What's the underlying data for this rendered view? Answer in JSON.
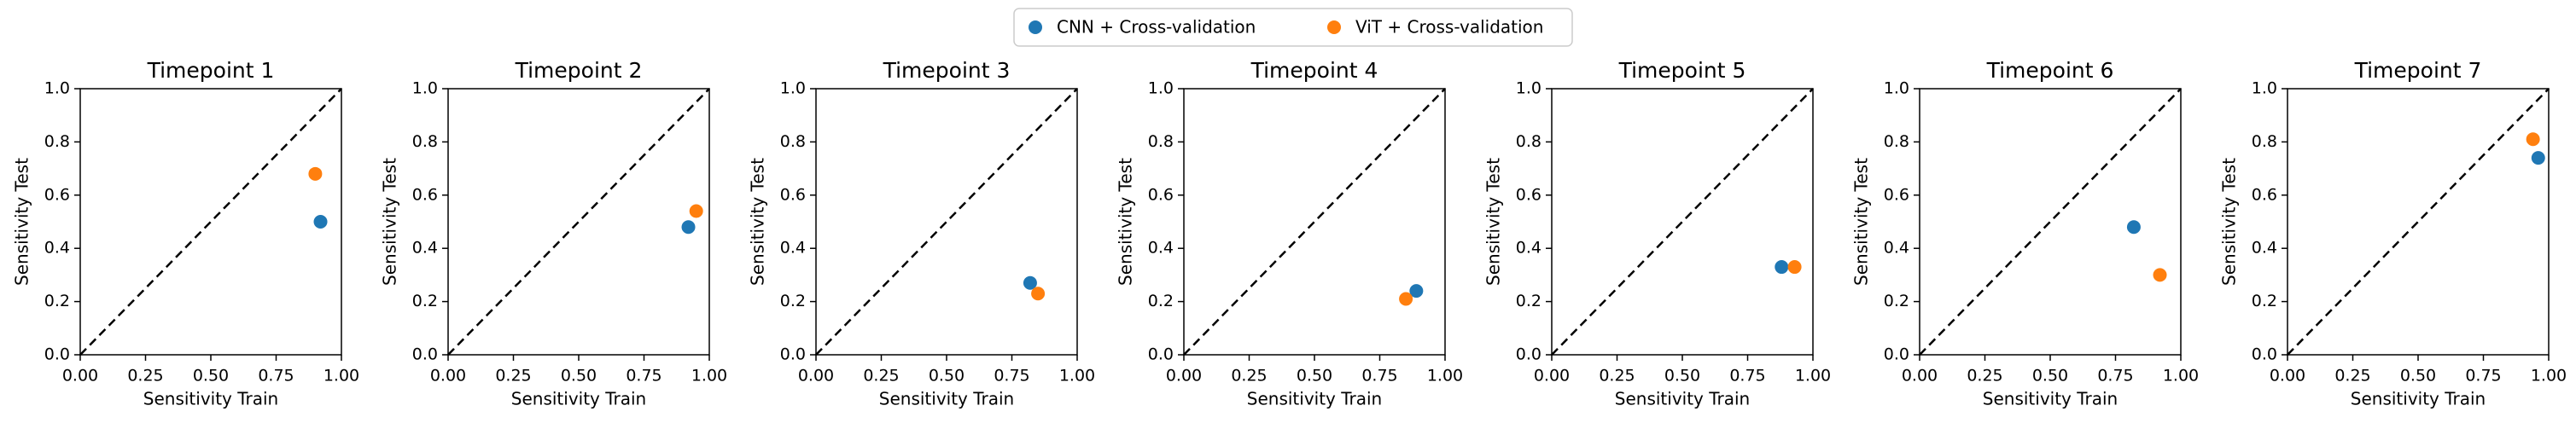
{
  "chart_data": [
    {
      "type": "scatter",
      "title": "Timepoint 1",
      "xlabel": "Sensitivity Train",
      "ylabel": "Sensitivity Test",
      "diagonal": true,
      "xlim": [
        0,
        1
      ],
      "ylim": [
        0,
        1
      ],
      "xticks": [
        {
          "value": 0,
          "label": "0.00"
        },
        {
          "value": 0.25,
          "label": "0.25"
        },
        {
          "value": 0.5,
          "label": "0.50"
        },
        {
          "value": 0.75,
          "label": "0.75"
        },
        {
          "value": 1,
          "label": "1.00"
        }
      ],
      "yticks": [
        {
          "value": 0,
          "label": "0.0"
        },
        {
          "value": 0.2,
          "label": "0.2"
        },
        {
          "value": 0.4,
          "label": "0.4"
        },
        {
          "value": 0.6,
          "label": "0.6"
        },
        {
          "value": 0.8,
          "label": "0.8"
        },
        {
          "value": 1,
          "label": "1.0"
        }
      ],
      "series": [
        {
          "name": "CNN + Cross-validation",
          "color": "#1f77b4",
          "x": [
            0.92
          ],
          "y": [
            0.5
          ]
        },
        {
          "name": "ViT + Cross-validation",
          "color": "#ff7f0e",
          "x": [
            0.9
          ],
          "y": [
            0.68
          ]
        }
      ]
    },
    {
      "type": "scatter",
      "title": "Timepoint 2",
      "xlabel": "Sensitivity Train",
      "ylabel": "Sensitivity Test",
      "diagonal": true,
      "xlim": [
        0,
        1
      ],
      "ylim": [
        0,
        1
      ],
      "xticks": [
        {
          "value": 0,
          "label": "0.00"
        },
        {
          "value": 0.25,
          "label": "0.25"
        },
        {
          "value": 0.5,
          "label": "0.50"
        },
        {
          "value": 0.75,
          "label": "0.75"
        },
        {
          "value": 1,
          "label": "1.00"
        }
      ],
      "yticks": [
        {
          "value": 0,
          "label": "0.0"
        },
        {
          "value": 0.2,
          "label": "0.2"
        },
        {
          "value": 0.4,
          "label": "0.4"
        },
        {
          "value": 0.6,
          "label": "0.6"
        },
        {
          "value": 0.8,
          "label": "0.8"
        },
        {
          "value": 1,
          "label": "1.0"
        }
      ],
      "series": [
        {
          "name": "CNN + Cross-validation",
          "color": "#1f77b4",
          "x": [
            0.92
          ],
          "y": [
            0.48
          ]
        },
        {
          "name": "ViT + Cross-validation",
          "color": "#ff7f0e",
          "x": [
            0.95
          ],
          "y": [
            0.54
          ]
        }
      ]
    },
    {
      "type": "scatter",
      "title": "Timepoint 3",
      "xlabel": "Sensitivity Train",
      "ylabel": "Sensitivity Test",
      "diagonal": true,
      "xlim": [
        0,
        1
      ],
      "ylim": [
        0,
        1
      ],
      "xticks": [
        {
          "value": 0,
          "label": "0.00"
        },
        {
          "value": 0.25,
          "label": "0.25"
        },
        {
          "value": 0.5,
          "label": "0.50"
        },
        {
          "value": 0.75,
          "label": "0.75"
        },
        {
          "value": 1,
          "label": "1.00"
        }
      ],
      "yticks": [
        {
          "value": 0,
          "label": "0.0"
        },
        {
          "value": 0.2,
          "label": "0.2"
        },
        {
          "value": 0.4,
          "label": "0.4"
        },
        {
          "value": 0.6,
          "label": "0.6"
        },
        {
          "value": 0.8,
          "label": "0.8"
        },
        {
          "value": 1,
          "label": "1.0"
        }
      ],
      "series": [
        {
          "name": "CNN + Cross-validation",
          "color": "#1f77b4",
          "x": [
            0.82
          ],
          "y": [
            0.27
          ]
        },
        {
          "name": "ViT + Cross-validation",
          "color": "#ff7f0e",
          "x": [
            0.85
          ],
          "y": [
            0.23
          ]
        }
      ]
    },
    {
      "type": "scatter",
      "title": "Timepoint 4",
      "xlabel": "Sensitivity Train",
      "ylabel": "Sensitivity Test",
      "diagonal": true,
      "xlim": [
        0,
        1
      ],
      "ylim": [
        0,
        1
      ],
      "xticks": [
        {
          "value": 0,
          "label": "0.00"
        },
        {
          "value": 0.25,
          "label": "0.25"
        },
        {
          "value": 0.5,
          "label": "0.50"
        },
        {
          "value": 0.75,
          "label": "0.75"
        },
        {
          "value": 1,
          "label": "1.00"
        }
      ],
      "yticks": [
        {
          "value": 0,
          "label": "0.0"
        },
        {
          "value": 0.2,
          "label": "0.2"
        },
        {
          "value": 0.4,
          "label": "0.4"
        },
        {
          "value": 0.6,
          "label": "0.6"
        },
        {
          "value": 0.8,
          "label": "0.8"
        },
        {
          "value": 1,
          "label": "1.0"
        }
      ],
      "series": [
        {
          "name": "CNN + Cross-validation",
          "color": "#1f77b4",
          "x": [
            0.89
          ],
          "y": [
            0.24
          ]
        },
        {
          "name": "ViT + Cross-validation",
          "color": "#ff7f0e",
          "x": [
            0.85
          ],
          "y": [
            0.21
          ]
        }
      ]
    },
    {
      "type": "scatter",
      "title": "Timepoint 5",
      "xlabel": "Sensitivity Train",
      "ylabel": "Sensitivity Test",
      "diagonal": true,
      "xlim": [
        0,
        1
      ],
      "ylim": [
        0,
        1
      ],
      "xticks": [
        {
          "value": 0,
          "label": "0.00"
        },
        {
          "value": 0.25,
          "label": "0.25"
        },
        {
          "value": 0.5,
          "label": "0.50"
        },
        {
          "value": 0.75,
          "label": "0.75"
        },
        {
          "value": 1,
          "label": "1.00"
        }
      ],
      "yticks": [
        {
          "value": 0,
          "label": "0.0"
        },
        {
          "value": 0.2,
          "label": "0.2"
        },
        {
          "value": 0.4,
          "label": "0.4"
        },
        {
          "value": 0.6,
          "label": "0.6"
        },
        {
          "value": 0.8,
          "label": "0.8"
        },
        {
          "value": 1,
          "label": "1.0"
        }
      ],
      "series": [
        {
          "name": "CNN + Cross-validation",
          "color": "#1f77b4",
          "x": [
            0.88
          ],
          "y": [
            0.33
          ]
        },
        {
          "name": "ViT + Cross-validation",
          "color": "#ff7f0e",
          "x": [
            0.93
          ],
          "y": [
            0.33
          ]
        }
      ]
    },
    {
      "type": "scatter",
      "title": "Timepoint 6",
      "xlabel": "Sensitivity Train",
      "ylabel": "Sensitivity Test",
      "diagonal": true,
      "xlim": [
        0,
        1
      ],
      "ylim": [
        0,
        1
      ],
      "xticks": [
        {
          "value": 0,
          "label": "0.00"
        },
        {
          "value": 0.25,
          "label": "0.25"
        },
        {
          "value": 0.5,
          "label": "0.50"
        },
        {
          "value": 0.75,
          "label": "0.75"
        },
        {
          "value": 1,
          "label": "1.00"
        }
      ],
      "yticks": [
        {
          "value": 0,
          "label": "0.0"
        },
        {
          "value": 0.2,
          "label": "0.2"
        },
        {
          "value": 0.4,
          "label": "0.4"
        },
        {
          "value": 0.6,
          "label": "0.6"
        },
        {
          "value": 0.8,
          "label": "0.8"
        },
        {
          "value": 1,
          "label": "1.0"
        }
      ],
      "series": [
        {
          "name": "CNN + Cross-validation",
          "color": "#1f77b4",
          "x": [
            0.82
          ],
          "y": [
            0.48
          ]
        },
        {
          "name": "ViT + Cross-validation",
          "color": "#ff7f0e",
          "x": [
            0.92
          ],
          "y": [
            0.3
          ]
        }
      ]
    },
    {
      "type": "scatter",
      "title": "Timepoint 7",
      "xlabel": "Sensitivity Train",
      "ylabel": "Sensitivity Test",
      "diagonal": true,
      "xlim": [
        0,
        1
      ],
      "ylim": [
        0,
        1
      ],
      "xticks": [
        {
          "value": 0,
          "label": "0.00"
        },
        {
          "value": 0.25,
          "label": "0.25"
        },
        {
          "value": 0.5,
          "label": "0.50"
        },
        {
          "value": 0.75,
          "label": "0.75"
        },
        {
          "value": 1,
          "label": "1.00"
        }
      ],
      "yticks": [
        {
          "value": 0,
          "label": "0.0"
        },
        {
          "value": 0.2,
          "label": "0.2"
        },
        {
          "value": 0.4,
          "label": "0.4"
        },
        {
          "value": 0.6,
          "label": "0.6"
        },
        {
          "value": 0.8,
          "label": "0.8"
        },
        {
          "value": 1,
          "label": "1.0"
        }
      ],
      "series": [
        {
          "name": "CNN + Cross-validation",
          "color": "#1f77b4",
          "x": [
            0.96
          ],
          "y": [
            0.74
          ]
        },
        {
          "name": "ViT + Cross-validation",
          "color": "#ff7f0e",
          "x": [
            0.94
          ],
          "y": [
            0.81
          ]
        }
      ]
    }
  ]
}
